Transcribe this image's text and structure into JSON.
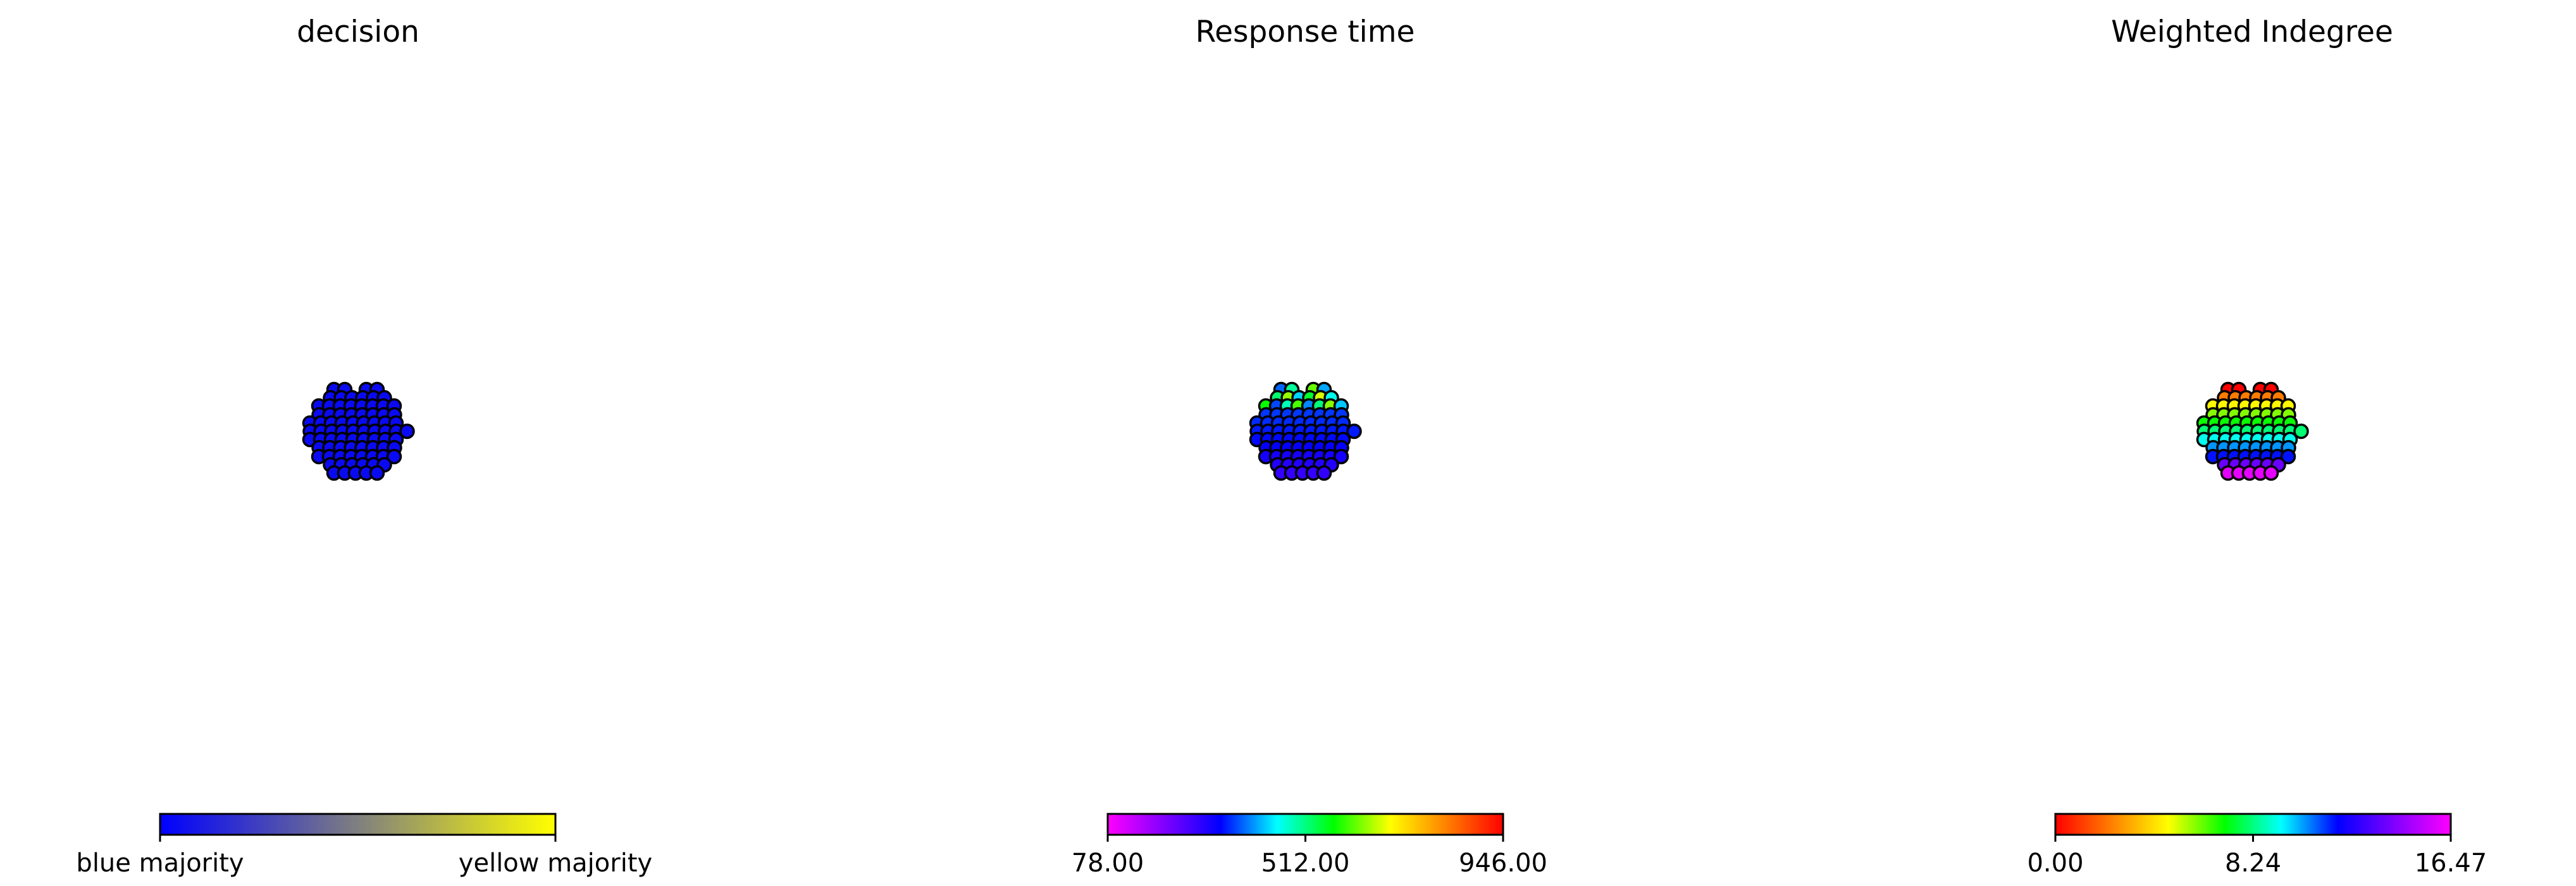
{
  "chart_data": [
    {
      "type": "scatter",
      "title": "decision",
      "colormap": [
        "#0000ff",
        "#ffff00"
      ],
      "node_colors": {
        "low": "#0a0af2",
        "high": "#0a0af2",
        "gradient": "vertical"
      },
      "colorbar": {
        "range": [
          "blue majority",
          "yellow majority"
        ],
        "tick_labels": [
          "blue majority",
          "yellow majority"
        ],
        "colors": [
          "#0000ff",
          "#ffff00"
        ]
      }
    },
    {
      "type": "scatter",
      "title": "Response time",
      "colormap": "gist_rainbow_r",
      "node_colors": {
        "low": "#3a00e6",
        "high": "#8a1cf0",
        "gradient": "vertical"
      },
      "colorbar": {
        "range": [
          78.0,
          946.0
        ],
        "tick_labels": [
          "78.00",
          "512.00",
          "946.00"
        ],
        "colors": [
          "#ff00ff",
          "#8000ff",
          "#0000ff",
          "#00ffff",
          "#00ff00",
          "#ffff00",
          "#ff8000",
          "#ff0000"
        ]
      }
    },
    {
      "type": "scatter",
      "title": "Weighted Indegree",
      "colormap": "gist_rainbow",
      "node_colors": {
        "low": "#ee00cc",
        "high": "#ff1010",
        "gradient": "vertical"
      },
      "colorbar": {
        "range": [
          0.0,
          16.47
        ],
        "tick_labels": [
          "0.00",
          "8.24",
          "16.47"
        ],
        "colors": [
          "#ff0000",
          "#ff8000",
          "#ffff00",
          "#00ff00",
          "#00ffff",
          "#0000ff",
          "#8000ff",
          "#ff00ff"
        ]
      }
    }
  ]
}
